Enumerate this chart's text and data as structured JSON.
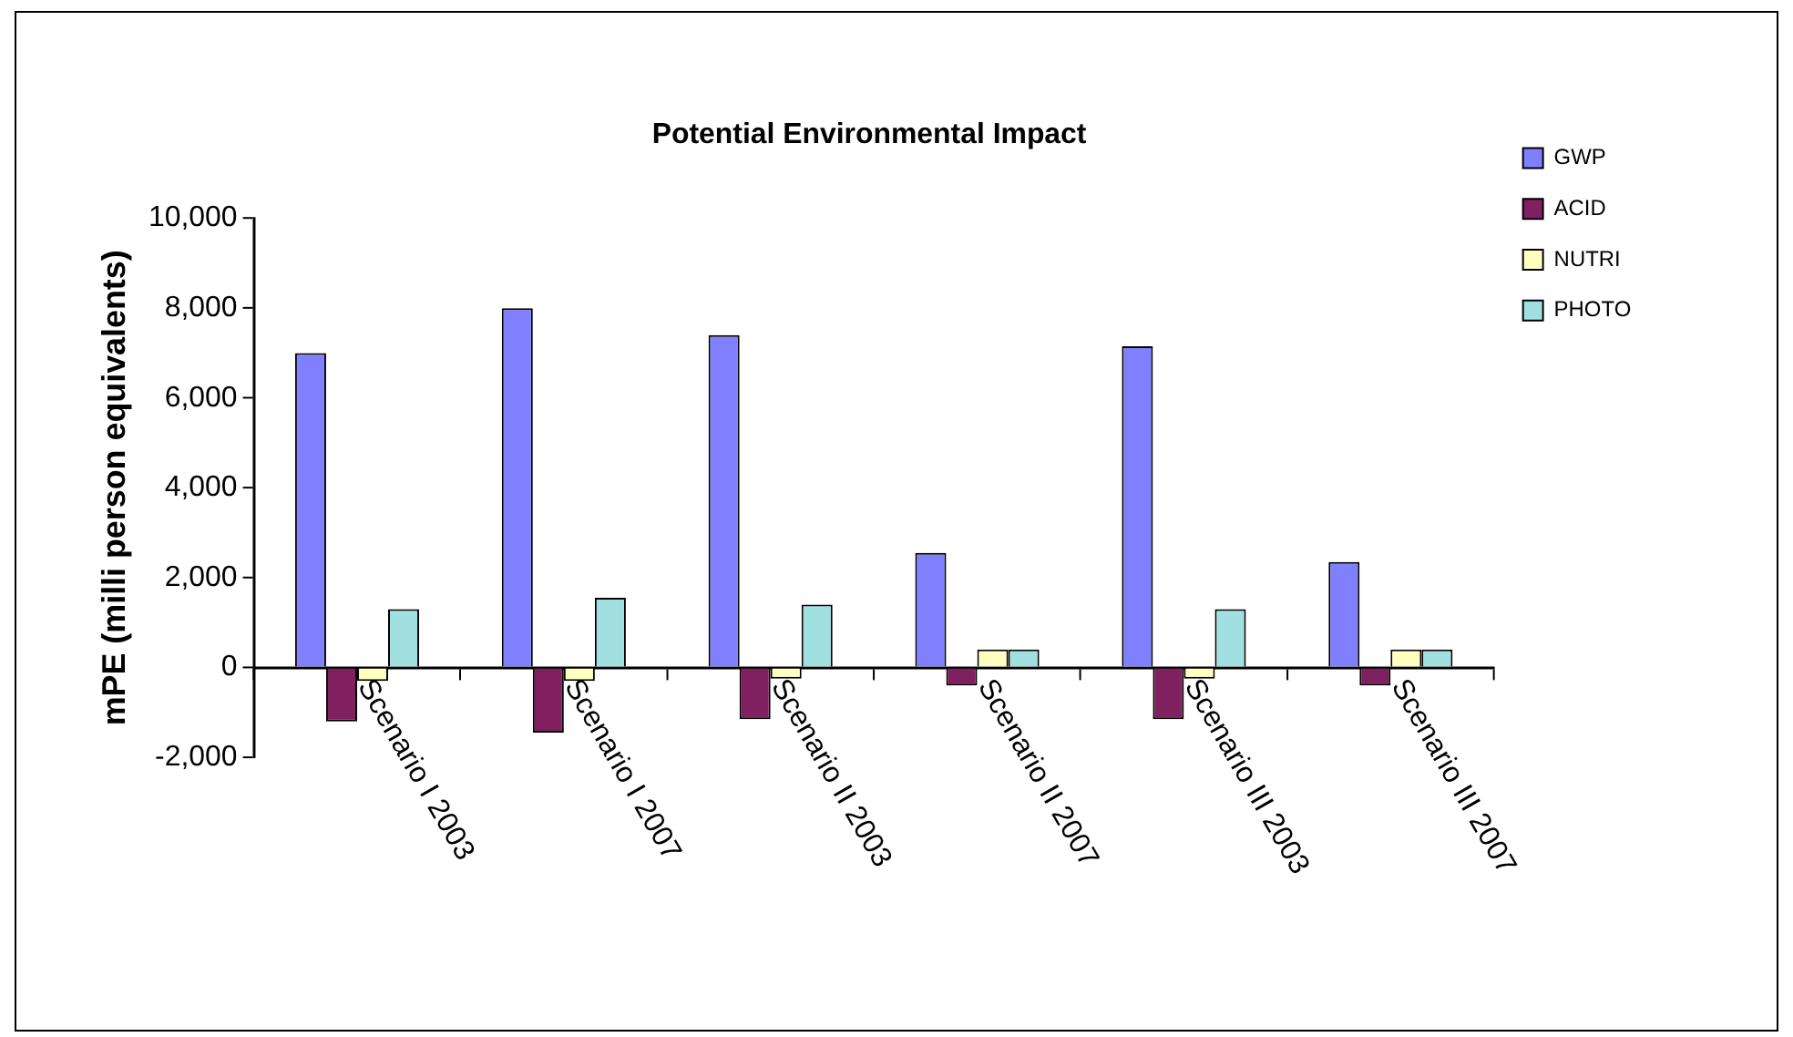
{
  "chart_data": {
    "type": "bar",
    "title": "Potential Environmental Impact",
    "ylabel": "mPE (milli person equivalents)",
    "categories": [
      "Scenario I 2003",
      "Scenario I 2007",
      "Scenario II 2003",
      "Scenario II 2007",
      "Scenario III 2003",
      "Scenario III 2007"
    ],
    "series": [
      {
        "name": "GWP",
        "color": "#8080ff",
        "values": [
          7000,
          8000,
          7400,
          2550,
          7150,
          2350
        ]
      },
      {
        "name": "ACID",
        "color": "#802060",
        "values": [
          -1200,
          -1450,
          -1150,
          -400,
          -1150,
          -400
        ]
      },
      {
        "name": "NUTRI",
        "color": "#ffffc0",
        "values": [
          -300,
          -300,
          -250,
          400,
          -250,
          400
        ]
      },
      {
        "name": "PHOTO",
        "color": "#a0e0e0",
        "values": [
          1300,
          1550,
          1400,
          400,
          1300,
          400
        ]
      }
    ],
    "ylim": [
      -2000,
      10000
    ],
    "yticks": [
      {
        "value": -2000,
        "label": "-2,000"
      },
      0,
      {
        "value": 2000,
        "label": "2,000"
      },
      {
        "value": 4000,
        "label": "4,000"
      },
      {
        "value": 6000,
        "label": "6,000"
      },
      {
        "value": 8000,
        "label": "8,000"
      },
      {
        "value": 10000,
        "label": "10,000"
      }
    ],
    "grid": false,
    "legend": "top right"
  }
}
